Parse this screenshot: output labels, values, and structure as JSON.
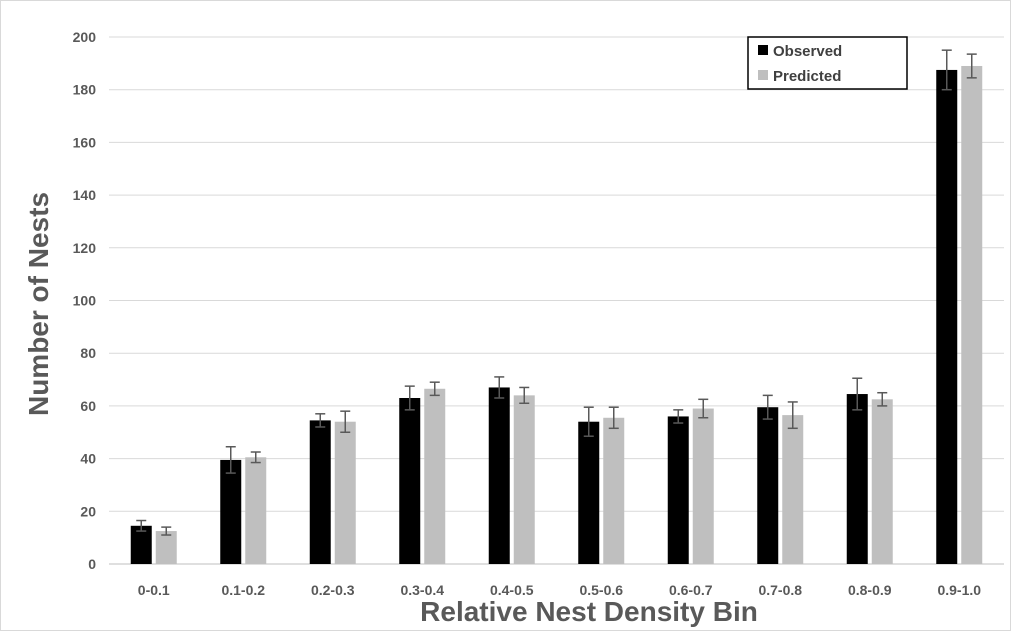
{
  "chart_data": {
    "type": "bar",
    "title": "",
    "xlabel": "Relative Nest Density Bin",
    "ylabel": "Number of Nests",
    "ylim": [
      0,
      200
    ],
    "yticks": [
      0,
      20,
      40,
      60,
      80,
      100,
      120,
      140,
      160,
      180,
      200
    ],
    "grid": true,
    "legend_position": "top-right",
    "categories": [
      "0-0.1",
      "0.1-0.2",
      "0.2-0.3",
      "0.3-0.4",
      "0.4-0.5",
      "0.5-0.6",
      "0.6-0.7",
      "0.7-0.8",
      "0.8-0.9",
      "0.9-1.0"
    ],
    "series": [
      {
        "name": "Observed",
        "color": "#000000",
        "values": [
          14.5,
          39.5,
          54.5,
          63,
          67,
          54,
          56,
          59.5,
          64.5,
          187.5
        ],
        "error": [
          2,
          5,
          2.5,
          4.5,
          4,
          5.5,
          2.5,
          4.5,
          6,
          7.5
        ]
      },
      {
        "name": "Predicted",
        "color": "#bfbfbf",
        "values": [
          12.5,
          40.5,
          54,
          66.5,
          64,
          55.5,
          59,
          56.5,
          62.5,
          189
        ],
        "error": [
          1.5,
          2,
          4,
          2.5,
          3,
          4,
          3.5,
          5,
          2.5,
          4.5
        ]
      }
    ]
  }
}
